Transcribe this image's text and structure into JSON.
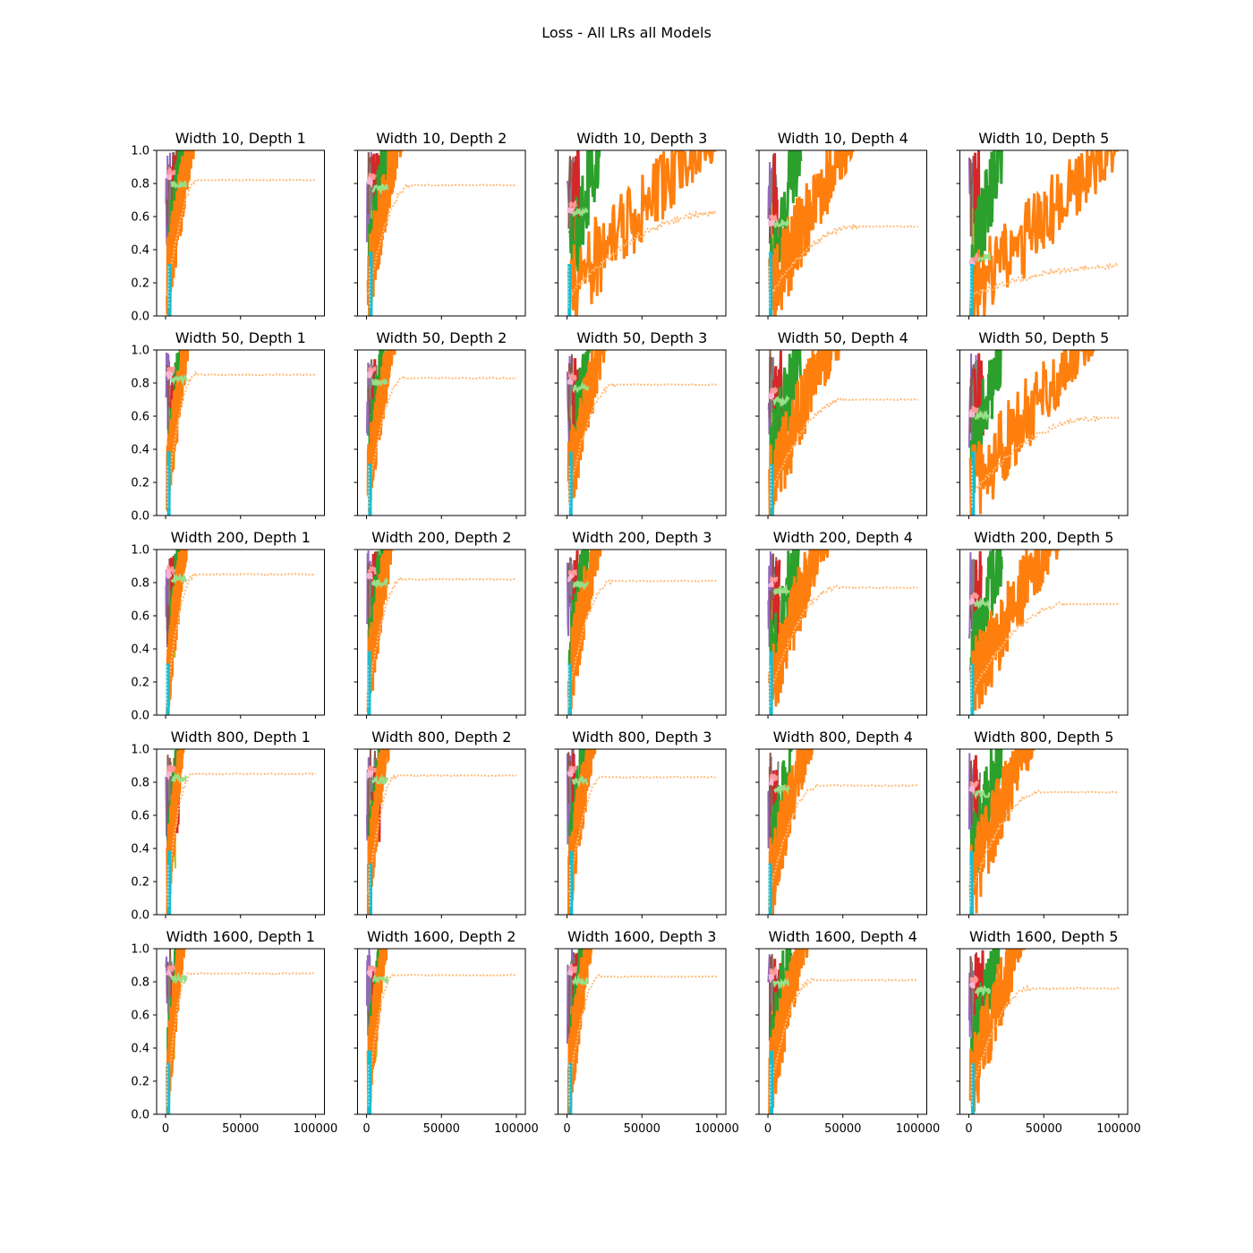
{
  "suptitle": "Loss - All LRs all Models",
  "chart_data": {
    "type": "line",
    "title": "Loss - All LRs all Models",
    "grid": false,
    "legend": "none",
    "rows": 5,
    "cols": 5,
    "ylim": [
      0,
      1
    ],
    "xlim": [
      -6000,
      106000
    ],
    "yticks": [
      0.0,
      0.2,
      0.4,
      0.6,
      0.8,
      1.0
    ],
    "yticklabels": [
      "0.0",
      "0.2",
      "0.4",
      "0.6",
      "0.8",
      "1.0"
    ],
    "xticks": [
      0,
      50000,
      100000
    ],
    "xticklabels": [
      "0",
      "50000",
      "100000"
    ],
    "series_colors": {
      "orange": "#ff7f0e",
      "light_orange": "#ffbb78",
      "green": "#2ca02c",
      "light_green": "#98df8a",
      "red": "#d62728",
      "pink": "#ff9896",
      "light_pink": "#f7b6d2",
      "purple": "#9467bd",
      "brown": "#8c564b",
      "olive": "#bcbd22",
      "cyan": "#17becf",
      "light_cyan": "#9edae5",
      "gray": "#7f7f7f"
    },
    "panels": [
      {
        "title": "Width 10, Depth 1",
        "final_smoothed": 0.82,
        "rise_end": 18000,
        "plateau_start": 22000
      },
      {
        "title": "Width 10, Depth 2",
        "final_smoothed": 0.79,
        "rise_end": 22000,
        "plateau_start": 30000
      },
      {
        "title": "Width 10, Depth 3",
        "final_smoothed": 0.62,
        "rise_end": 95000,
        "plateau_start": 100000
      },
      {
        "title": "Width 10, Depth 4",
        "final_smoothed": 0.54,
        "rise_end": 55000,
        "plateau_start": 60000
      },
      {
        "title": "Width 10, Depth 5",
        "final_smoothed": 0.3,
        "rise_end": 100000,
        "plateau_start": 100000
      },
      {
        "title": "Width 50, Depth 1",
        "final_smoothed": 0.85,
        "rise_end": 15000,
        "plateau_start": 20000
      },
      {
        "title": "Width 50, Depth 2",
        "final_smoothed": 0.83,
        "rise_end": 18000,
        "plateau_start": 25000
      },
      {
        "title": "Width 50, Depth 3",
        "final_smoothed": 0.79,
        "rise_end": 25000,
        "plateau_start": 32000
      },
      {
        "title": "Width 50, Depth 4",
        "final_smoothed": 0.7,
        "rise_end": 45000,
        "plateau_start": 52000
      },
      {
        "title": "Width 50, Depth 5",
        "final_smoothed": 0.59,
        "rise_end": 80000,
        "plateau_start": 86000
      },
      {
        "title": "Width 200, Depth 1",
        "final_smoothed": 0.85,
        "rise_end": 14000,
        "plateau_start": 20000
      },
      {
        "title": "Width 200, Depth 2",
        "final_smoothed": 0.82,
        "rise_end": 17000,
        "plateau_start": 24000
      },
      {
        "title": "Width 200, Depth 3",
        "final_smoothed": 0.81,
        "rise_end": 22000,
        "plateau_start": 30000
      },
      {
        "title": "Width 200, Depth 4",
        "final_smoothed": 0.77,
        "rise_end": 38000,
        "plateau_start": 46000
      },
      {
        "title": "Width 200, Depth 5",
        "final_smoothed": 0.67,
        "rise_end": 58000,
        "plateau_start": 66000
      },
      {
        "title": "Width 800, Depth 1",
        "final_smoothed": 0.85,
        "rise_end": 12000,
        "plateau_start": 18000
      },
      {
        "title": "Width 800, Depth 2",
        "final_smoothed": 0.84,
        "rise_end": 14000,
        "plateau_start": 20000
      },
      {
        "title": "Width 800, Depth 3",
        "final_smoothed": 0.83,
        "rise_end": 18000,
        "plateau_start": 24000
      },
      {
        "title": "Width 800, Depth 4",
        "final_smoothed": 0.78,
        "rise_end": 28000,
        "plateau_start": 34000
      },
      {
        "title": "Width 800, Depth 5",
        "final_smoothed": 0.74,
        "rise_end": 42000,
        "plateau_start": 48000
      },
      {
        "title": "Width 1600, Depth 1",
        "final_smoothed": 0.85,
        "rise_end": 12000,
        "plateau_start": 16000
      },
      {
        "title": "Width 1600, Depth 2",
        "final_smoothed": 0.84,
        "rise_end": 13000,
        "plateau_start": 18000
      },
      {
        "title": "Width 1600, Depth 3",
        "final_smoothed": 0.83,
        "rise_end": 16000,
        "plateau_start": 22000
      },
      {
        "title": "Width 1600, Depth 4",
        "final_smoothed": 0.81,
        "rise_end": 25000,
        "plateau_start": 30000
      },
      {
        "title": "Width 1600, Depth 5",
        "final_smoothed": 0.76,
        "rise_end": 36000,
        "plateau_start": 42000
      }
    ]
  }
}
